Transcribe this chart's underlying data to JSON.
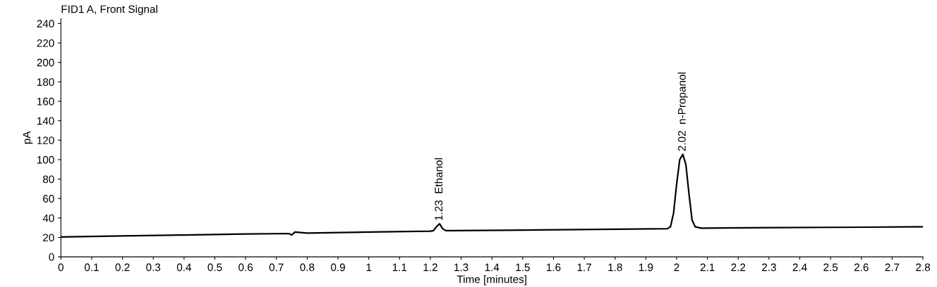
{
  "chart_data": {
    "type": "line",
    "title": "FID1 A, Front Signal",
    "xlabel": "Time [minutes]",
    "ylabel": "pA",
    "x": [
      0,
      0.2,
      0.4,
      0.6,
      0.74,
      0.75,
      0.76,
      0.8,
      1.0,
      1.2,
      1.21,
      1.22,
      1.23,
      1.24,
      1.25,
      1.27,
      1.5,
      1.8,
      1.97,
      1.98,
      1.99,
      2.0,
      2.01,
      2.02,
      2.03,
      2.04,
      2.05,
      2.06,
      2.08,
      2.3,
      2.6,
      2.8
    ],
    "series": [
      {
        "color": "#000000",
        "values": [
          20.5,
          21.5,
          22.5,
          23.5,
          24,
          22.5,
          25.5,
          24.5,
          25.5,
          26.5,
          27,
          31,
          34,
          29,
          27,
          27,
          27.5,
          28.5,
          29,
          31,
          45,
          75,
          100,
          105.5,
          95,
          65,
          38,
          31,
          29.5,
          30,
          30.5,
          31
        ]
      }
    ],
    "annotations": [
      {
        "text": "1.23  Ethanol",
        "x": 1.23,
        "y": 34
      },
      {
        "text": "2.02  n-Propanol",
        "x": 2.02,
        "y": 105.5
      }
    ],
    "xlim": [
      0,
      2.8
    ],
    "ylim": [
      0,
      245
    ],
    "xticks": [
      0,
      0.1,
      0.2,
      0.3,
      0.4,
      0.5,
      0.6,
      0.7,
      0.8,
      0.9,
      1,
      1.1,
      1.2,
      1.3,
      1.4,
      1.5,
      1.6,
      1.7,
      1.8,
      1.9,
      2,
      2.1,
      2.2,
      2.3,
      2.4,
      2.5,
      2.6,
      2.7,
      2.8
    ],
    "yticks": [
      0,
      20,
      40,
      60,
      80,
      100,
      120,
      140,
      160,
      180,
      200,
      220,
      240
    ],
    "grid": false,
    "legend": false,
    "marker": "none",
    "line_style": "solid"
  }
}
